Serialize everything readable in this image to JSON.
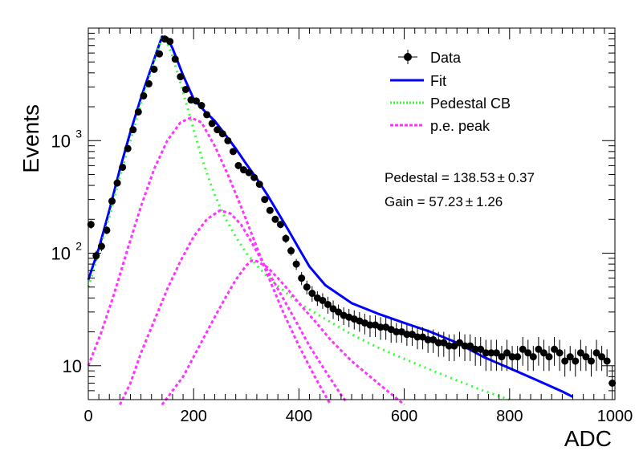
{
  "chart_data": {
    "type": "scatter",
    "xlabel": "ADC",
    "ylabel": "Events",
    "xlim": [
      0,
      1000
    ],
    "ylim": [
      5,
      10000
    ],
    "yscale": "log",
    "grid": false,
    "legend_position": "top-right",
    "x_ticks": [
      0,
      200,
      400,
      600,
      800,
      1000
    ],
    "y_ticks": [
      {
        "value": 10,
        "label": "10"
      },
      {
        "value": 100,
        "label": "10",
        "exp": "2"
      },
      {
        "value": 1000,
        "label": "10",
        "exp": "3"
      }
    ],
    "legend": [
      {
        "label": "Data",
        "style": "marker",
        "color": "#000000"
      },
      {
        "label": "Fit",
        "style": "solid",
        "color": "#0000ff"
      },
      {
        "label": "Pedestal CB",
        "style": "dotted",
        "color": "#33ff33"
      },
      {
        "label": "p.e. peak",
        "style": "dotted",
        "color": "#ff33ff"
      }
    ],
    "annotations": [
      {
        "text": "Pedestal = 138.53",
        "pm": "±",
        "err": "0.37"
      },
      {
        "text": "Gain = 57.23",
        "pm": "±",
        "err": "1.26"
      }
    ],
    "series": [
      {
        "name": "Data",
        "kind": "points",
        "color": "#000000",
        "points": [
          [
            5,
            180,
            15
          ],
          [
            15,
            95,
            10
          ],
          [
            25,
            115,
            11
          ],
          [
            35,
            160,
            13
          ],
          [
            45,
            290,
            17
          ],
          [
            55,
            420,
            21
          ],
          [
            65,
            580,
            24
          ],
          [
            75,
            850,
            29
          ],
          [
            85,
            1250,
            35
          ],
          [
            95,
            1800,
            42
          ],
          [
            105,
            2500,
            50
          ],
          [
            115,
            3200,
            57
          ],
          [
            125,
            4300,
            66
          ],
          [
            135,
            5900,
            77
          ],
          [
            145,
            8000,
            89
          ],
          [
            155,
            7600,
            87
          ],
          [
            165,
            5300,
            73
          ],
          [
            175,
            3700,
            61
          ],
          [
            185,
            2850,
            53
          ],
          [
            195,
            2300,
            48
          ],
          [
            205,
            2250,
            47
          ],
          [
            215,
            2050,
            45
          ],
          [
            225,
            1700,
            41
          ],
          [
            235,
            1420,
            38
          ],
          [
            245,
            1250,
            35
          ],
          [
            255,
            1150,
            34
          ],
          [
            265,
            1000,
            32
          ],
          [
            275,
            800,
            28
          ],
          [
            285,
            600,
            25
          ],
          [
            295,
            550,
            23
          ],
          [
            305,
            520,
            23
          ],
          [
            315,
            470,
            22
          ],
          [
            325,
            410,
            20
          ],
          [
            335,
            300,
            17
          ],
          [
            345,
            240,
            16
          ],
          [
            355,
            200,
            14
          ],
          [
            365,
            180,
            13
          ],
          [
            375,
            135,
            12
          ],
          [
            385,
            105,
            10
          ],
          [
            395,
            80,
            9
          ],
          [
            405,
            60,
            8
          ],
          [
            415,
            50,
            7
          ],
          [
            425,
            44,
            7
          ],
          [
            435,
            40,
            6
          ],
          [
            445,
            38,
            6
          ],
          [
            455,
            35,
            6
          ],
          [
            465,
            32,
            6
          ],
          [
            475,
            30,
            5
          ],
          [
            485,
            28,
            5
          ],
          [
            495,
            27,
            5
          ],
          [
            505,
            26,
            5
          ],
          [
            515,
            25,
            5
          ],
          [
            525,
            24,
            5
          ],
          [
            535,
            23,
            5
          ],
          [
            545,
            23,
            5
          ],
          [
            555,
            22,
            5
          ],
          [
            565,
            22,
            5
          ],
          [
            575,
            21,
            5
          ],
          [
            585,
            20,
            4
          ],
          [
            595,
            20,
            4
          ],
          [
            605,
            19,
            4
          ],
          [
            615,
            19,
            4
          ],
          [
            625,
            18,
            4
          ],
          [
            635,
            18,
            4
          ],
          [
            645,
            17,
            4
          ],
          [
            655,
            17,
            4
          ],
          [
            665,
            16,
            4
          ],
          [
            675,
            16,
            4
          ],
          [
            685,
            15,
            4
          ],
          [
            695,
            15,
            4
          ],
          [
            705,
            16,
            4
          ],
          [
            715,
            15,
            4
          ],
          [
            725,
            15,
            4
          ],
          [
            735,
            14,
            4
          ],
          [
            745,
            14,
            4
          ],
          [
            755,
            13,
            4
          ],
          [
            765,
            13,
            4
          ],
          [
            775,
            13,
            4
          ],
          [
            785,
            12,
            3
          ],
          [
            795,
            13,
            4
          ],
          [
            805,
            12,
            3
          ],
          [
            815,
            12,
            3
          ],
          [
            825,
            14,
            4
          ],
          [
            835,
            13,
            4
          ],
          [
            845,
            12,
            3
          ],
          [
            855,
            14,
            4
          ],
          [
            865,
            13,
            4
          ],
          [
            875,
            12,
            3
          ],
          [
            885,
            14,
            4
          ],
          [
            895,
            13,
            4
          ],
          [
            905,
            11,
            3
          ],
          [
            915,
            12,
            3
          ],
          [
            925,
            11,
            3
          ],
          [
            935,
            13,
            4
          ],
          [
            945,
            12,
            3
          ],
          [
            955,
            11,
            3
          ],
          [
            965,
            13,
            4
          ],
          [
            975,
            12,
            3
          ],
          [
            985,
            11,
            3
          ],
          [
            995,
            7,
            3
          ]
        ]
      },
      {
        "name": "Fit",
        "kind": "line",
        "color": "#0000ff",
        "points": [
          [
            0,
            58
          ],
          [
            20,
            110
          ],
          [
            40,
            240
          ],
          [
            60,
            560
          ],
          [
            80,
            1200
          ],
          [
            100,
            2400
          ],
          [
            120,
            4500
          ],
          [
            140,
            8400
          ],
          [
            150,
            8200
          ],
          [
            160,
            6600
          ],
          [
            180,
            3800
          ],
          [
            200,
            2350
          ],
          [
            220,
            1850
          ],
          [
            240,
            1500
          ],
          [
            260,
            1130
          ],
          [
            280,
            850
          ],
          [
            300,
            620
          ],
          [
            320,
            460
          ],
          [
            340,
            330
          ],
          [
            360,
            230
          ],
          [
            380,
            160
          ],
          [
            400,
            110
          ],
          [
            420,
            76
          ],
          [
            450,
            52
          ],
          [
            500,
            36
          ],
          [
            550,
            29
          ],
          [
            600,
            24
          ],
          [
            650,
            20
          ],
          [
            700,
            16
          ],
          [
            750,
            12
          ],
          [
            800,
            9.5
          ],
          [
            850,
            7.5
          ],
          [
            900,
            5.9
          ],
          [
            920,
            5.3
          ]
        ]
      },
      {
        "name": "Pedestal CB",
        "kind": "dotted",
        "color": "#33ff33",
        "points": [
          [
            0,
            50
          ],
          [
            20,
            100
          ],
          [
            40,
            210
          ],
          [
            60,
            480
          ],
          [
            80,
            1000
          ],
          [
            100,
            2150
          ],
          [
            120,
            4200
          ],
          [
            140,
            8300
          ],
          [
            150,
            7400
          ],
          [
            160,
            5600
          ],
          [
            180,
            2700
          ],
          [
            200,
            1250
          ],
          [
            220,
            600
          ],
          [
            240,
            330
          ],
          [
            260,
            205
          ],
          [
            280,
            140
          ],
          [
            300,
            100
          ],
          [
            320,
            78
          ],
          [
            340,
            62
          ],
          [
            360,
            51
          ],
          [
            380,
            43
          ],
          [
            400,
            36
          ],
          [
            450,
            26
          ],
          [
            500,
            19
          ],
          [
            550,
            14.5
          ],
          [
            600,
            11.5
          ],
          [
            650,
            9.2
          ],
          [
            700,
            7.4
          ],
          [
            750,
            6
          ],
          [
            800,
            5
          ]
        ]
      },
      {
        "name": "p.e. peak",
        "kind": "dotted",
        "color": "#ff33ff",
        "points": [
          [
            0,
            10
          ],
          [
            25,
            20
          ],
          [
            50,
            45
          ],
          [
            75,
            110
          ],
          [
            100,
            260
          ],
          [
            125,
            560
          ],
          [
            150,
            1000
          ],
          [
            175,
            1450
          ],
          [
            195,
            1600
          ],
          [
            215,
            1450
          ],
          [
            240,
            900
          ],
          [
            265,
            500
          ],
          [
            290,
            260
          ],
          [
            315,
            130
          ],
          [
            340,
            65
          ],
          [
            370,
            30
          ],
          [
            400,
            15
          ],
          [
            430,
            8
          ],
          [
            460,
            4.5
          ]
        ]
      },
      {
        "name": "p.e. peak",
        "kind": "dotted",
        "color": "#ff33ff",
        "points": [
          [
            60,
            4.5
          ],
          [
            80,
            7
          ],
          [
            100,
            13
          ],
          [
            125,
            25
          ],
          [
            150,
            48
          ],
          [
            175,
            85
          ],
          [
            200,
            140
          ],
          [
            225,
            200
          ],
          [
            250,
            240
          ],
          [
            270,
            225
          ],
          [
            290,
            180
          ],
          [
            310,
            125
          ],
          [
            330,
            85
          ],
          [
            360,
            48
          ],
          [
            390,
            27
          ],
          [
            420,
            15
          ],
          [
            450,
            9
          ],
          [
            480,
            5.5
          ],
          [
            490,
            4.8
          ]
        ]
      },
      {
        "name": "p.e. peak",
        "kind": "dotted",
        "color": "#ff33ff",
        "points": [
          [
            140,
            4.5
          ],
          [
            160,
            6
          ],
          [
            180,
            8
          ],
          [
            200,
            12
          ],
          [
            220,
            18
          ],
          [
            240,
            27
          ],
          [
            260,
            40
          ],
          [
            280,
            58
          ],
          [
            300,
            78
          ],
          [
            310,
            86
          ],
          [
            320,
            85
          ],
          [
            340,
            75
          ],
          [
            360,
            60
          ],
          [
            380,
            47
          ],
          [
            400,
            36
          ],
          [
            430,
            25
          ],
          [
            460,
            17
          ],
          [
            500,
            11
          ],
          [
            550,
            7
          ],
          [
            600,
            4.5
          ]
        ]
      }
    ]
  }
}
